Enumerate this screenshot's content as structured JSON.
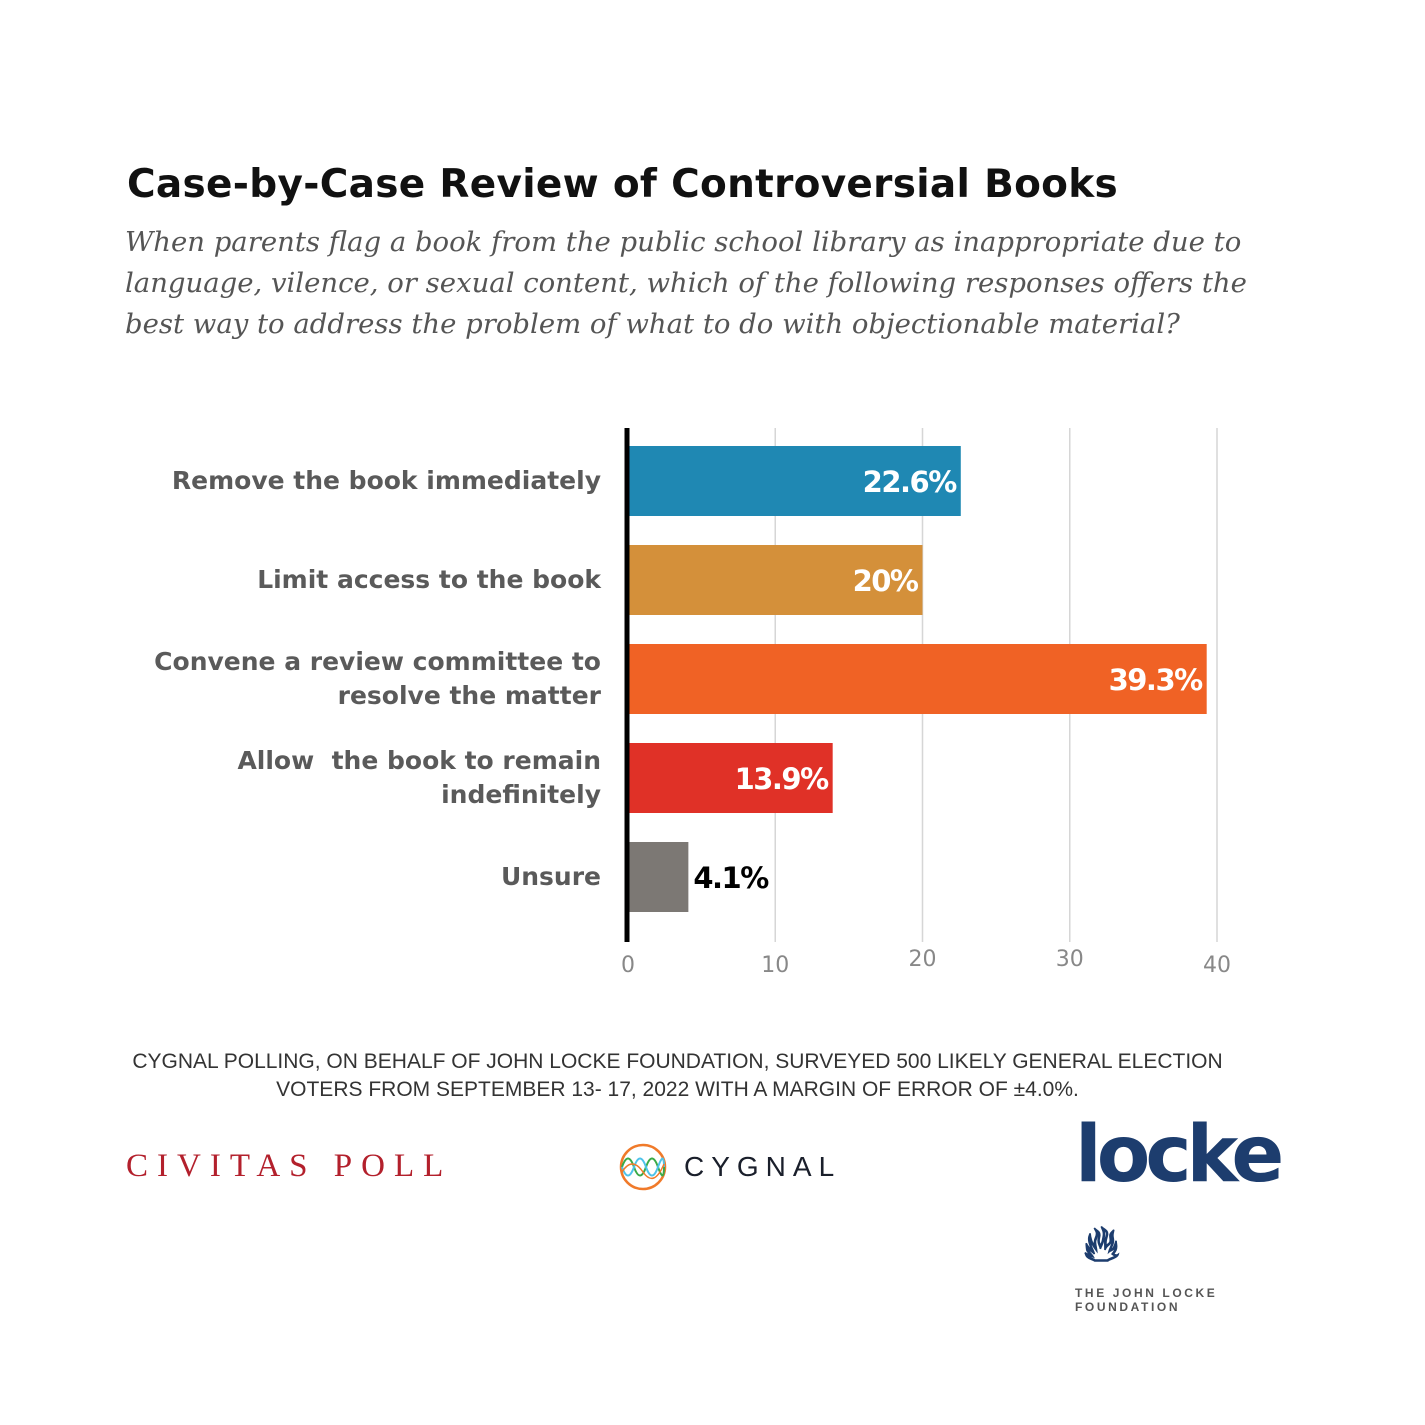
{
  "chart_data": {
    "type": "bar",
    "orientation": "horizontal",
    "title": "Case-by-Case Review of Controversial Books",
    "subtitle": "When parents flag a book from the public school library as inappropriate due to language, vilence, or sexual content, which of the following responses offers the best way to address the problem of what to do with objectionable material?",
    "categories": [
      "Remove the book immediately",
      "Limit access to the book",
      "Convene a review committee to\nresolve the matter",
      "Allow  the book to remain\nindefinitely",
      "Unsure"
    ],
    "values": [
      22.6,
      20,
      39.3,
      13.9,
      4.1
    ],
    "data_labels": [
      "22.6%",
      "20%",
      "39.3%",
      "13.9%",
      "4.1%"
    ],
    "colors": [
      "#1f88b3",
      "#d4903a",
      "#f06225",
      "#e03127",
      "#7c7874"
    ],
    "label_colors": [
      "#ffffff",
      "#ffffff",
      "#ffffff",
      "#ffffff",
      "#000000"
    ],
    "xlim": [
      0,
      40
    ],
    "xticks": [
      0,
      10,
      20,
      30,
      40
    ],
    "xtick_labels": [
      "0",
      "10",
      "20",
      "30",
      "40"
    ],
    "grid": true,
    "xlabel": "",
    "ylabel": ""
  },
  "source": "CYGNAL POLLING, ON BEHALF OF JOHN LOCKE FOUNDATION, SURVEYED 500 LIKELY GENERAL ELECTION VOTERS FROM SEPTEMBER 13- 17, 2022 WITH A MARGIN OF ERROR OF ±4.0%.",
  "logos": {
    "civitas": "CIVITAS POLL",
    "cygnal": "CYGNAL",
    "locke": "locke",
    "locke_tagline": "THE JOHN LOCKE FOUNDATION"
  }
}
